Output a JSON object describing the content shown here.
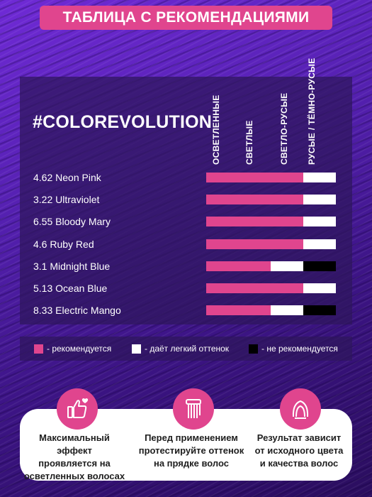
{
  "title": "ТАБЛИЦА С РЕКОМЕНДАЦИЯМИ",
  "brand": "#COLOREVOLUTION",
  "columns": [
    "ОСВЕТЛЕННЫЕ",
    "СВЕТЛЫЕ",
    "СВЕТЛО-РУСЫЕ",
    "РУСЫЕ / ТЁМНО-РУСЫЕ"
  ],
  "colors": {
    "recommended": "#e0458e",
    "light_tint": "#ffffff",
    "not_recommended": "#000000",
    "title_bg": "#e0458e"
  },
  "shades": [
    {
      "label": "4.62 Neon Pink",
      "levels": [
        "recommended",
        "recommended",
        "recommended",
        "light_tint"
      ]
    },
    {
      "label": "3.22 Ultraviolet",
      "levels": [
        "recommended",
        "recommended",
        "recommended",
        "light_tint"
      ]
    },
    {
      "label": "6.55 Bloody Mary",
      "levels": [
        "recommended",
        "recommended",
        "recommended",
        "light_tint"
      ]
    },
    {
      "label": "4.6 Ruby Red",
      "levels": [
        "recommended",
        "recommended",
        "recommended",
        "light_tint"
      ]
    },
    {
      "label": "3.1 Midnight Blue",
      "levels": [
        "recommended",
        "recommended",
        "light_tint",
        "not_recommended"
      ]
    },
    {
      "label": "5.13 Ocean Blue",
      "levels": [
        "recommended",
        "recommended",
        "recommended",
        "light_tint"
      ]
    },
    {
      "label": "8.33 Electric Mango",
      "levels": [
        "recommended",
        "recommended",
        "light_tint",
        "not_recommended"
      ]
    }
  ],
  "legend": {
    "recommended": "- рекомендуется",
    "light_tint": "- даёт легкий оттенок",
    "not_recommended": "- не рекомендуется"
  },
  "info": [
    {
      "icon": "thumbs-up-icon",
      "text_lines": [
        "Максимальный эффект",
        "проявляется на",
        "осветленных волосах"
      ]
    },
    {
      "icon": "hair-strand-icon",
      "text_lines": [
        "Перед применением",
        "протестируйте оттенок",
        "на прядке волос"
      ]
    },
    {
      "icon": "hair-head-icon",
      "text_lines": [
        "Результат зависит",
        "от исходного цвета",
        "и качества волос"
      ]
    }
  ]
}
